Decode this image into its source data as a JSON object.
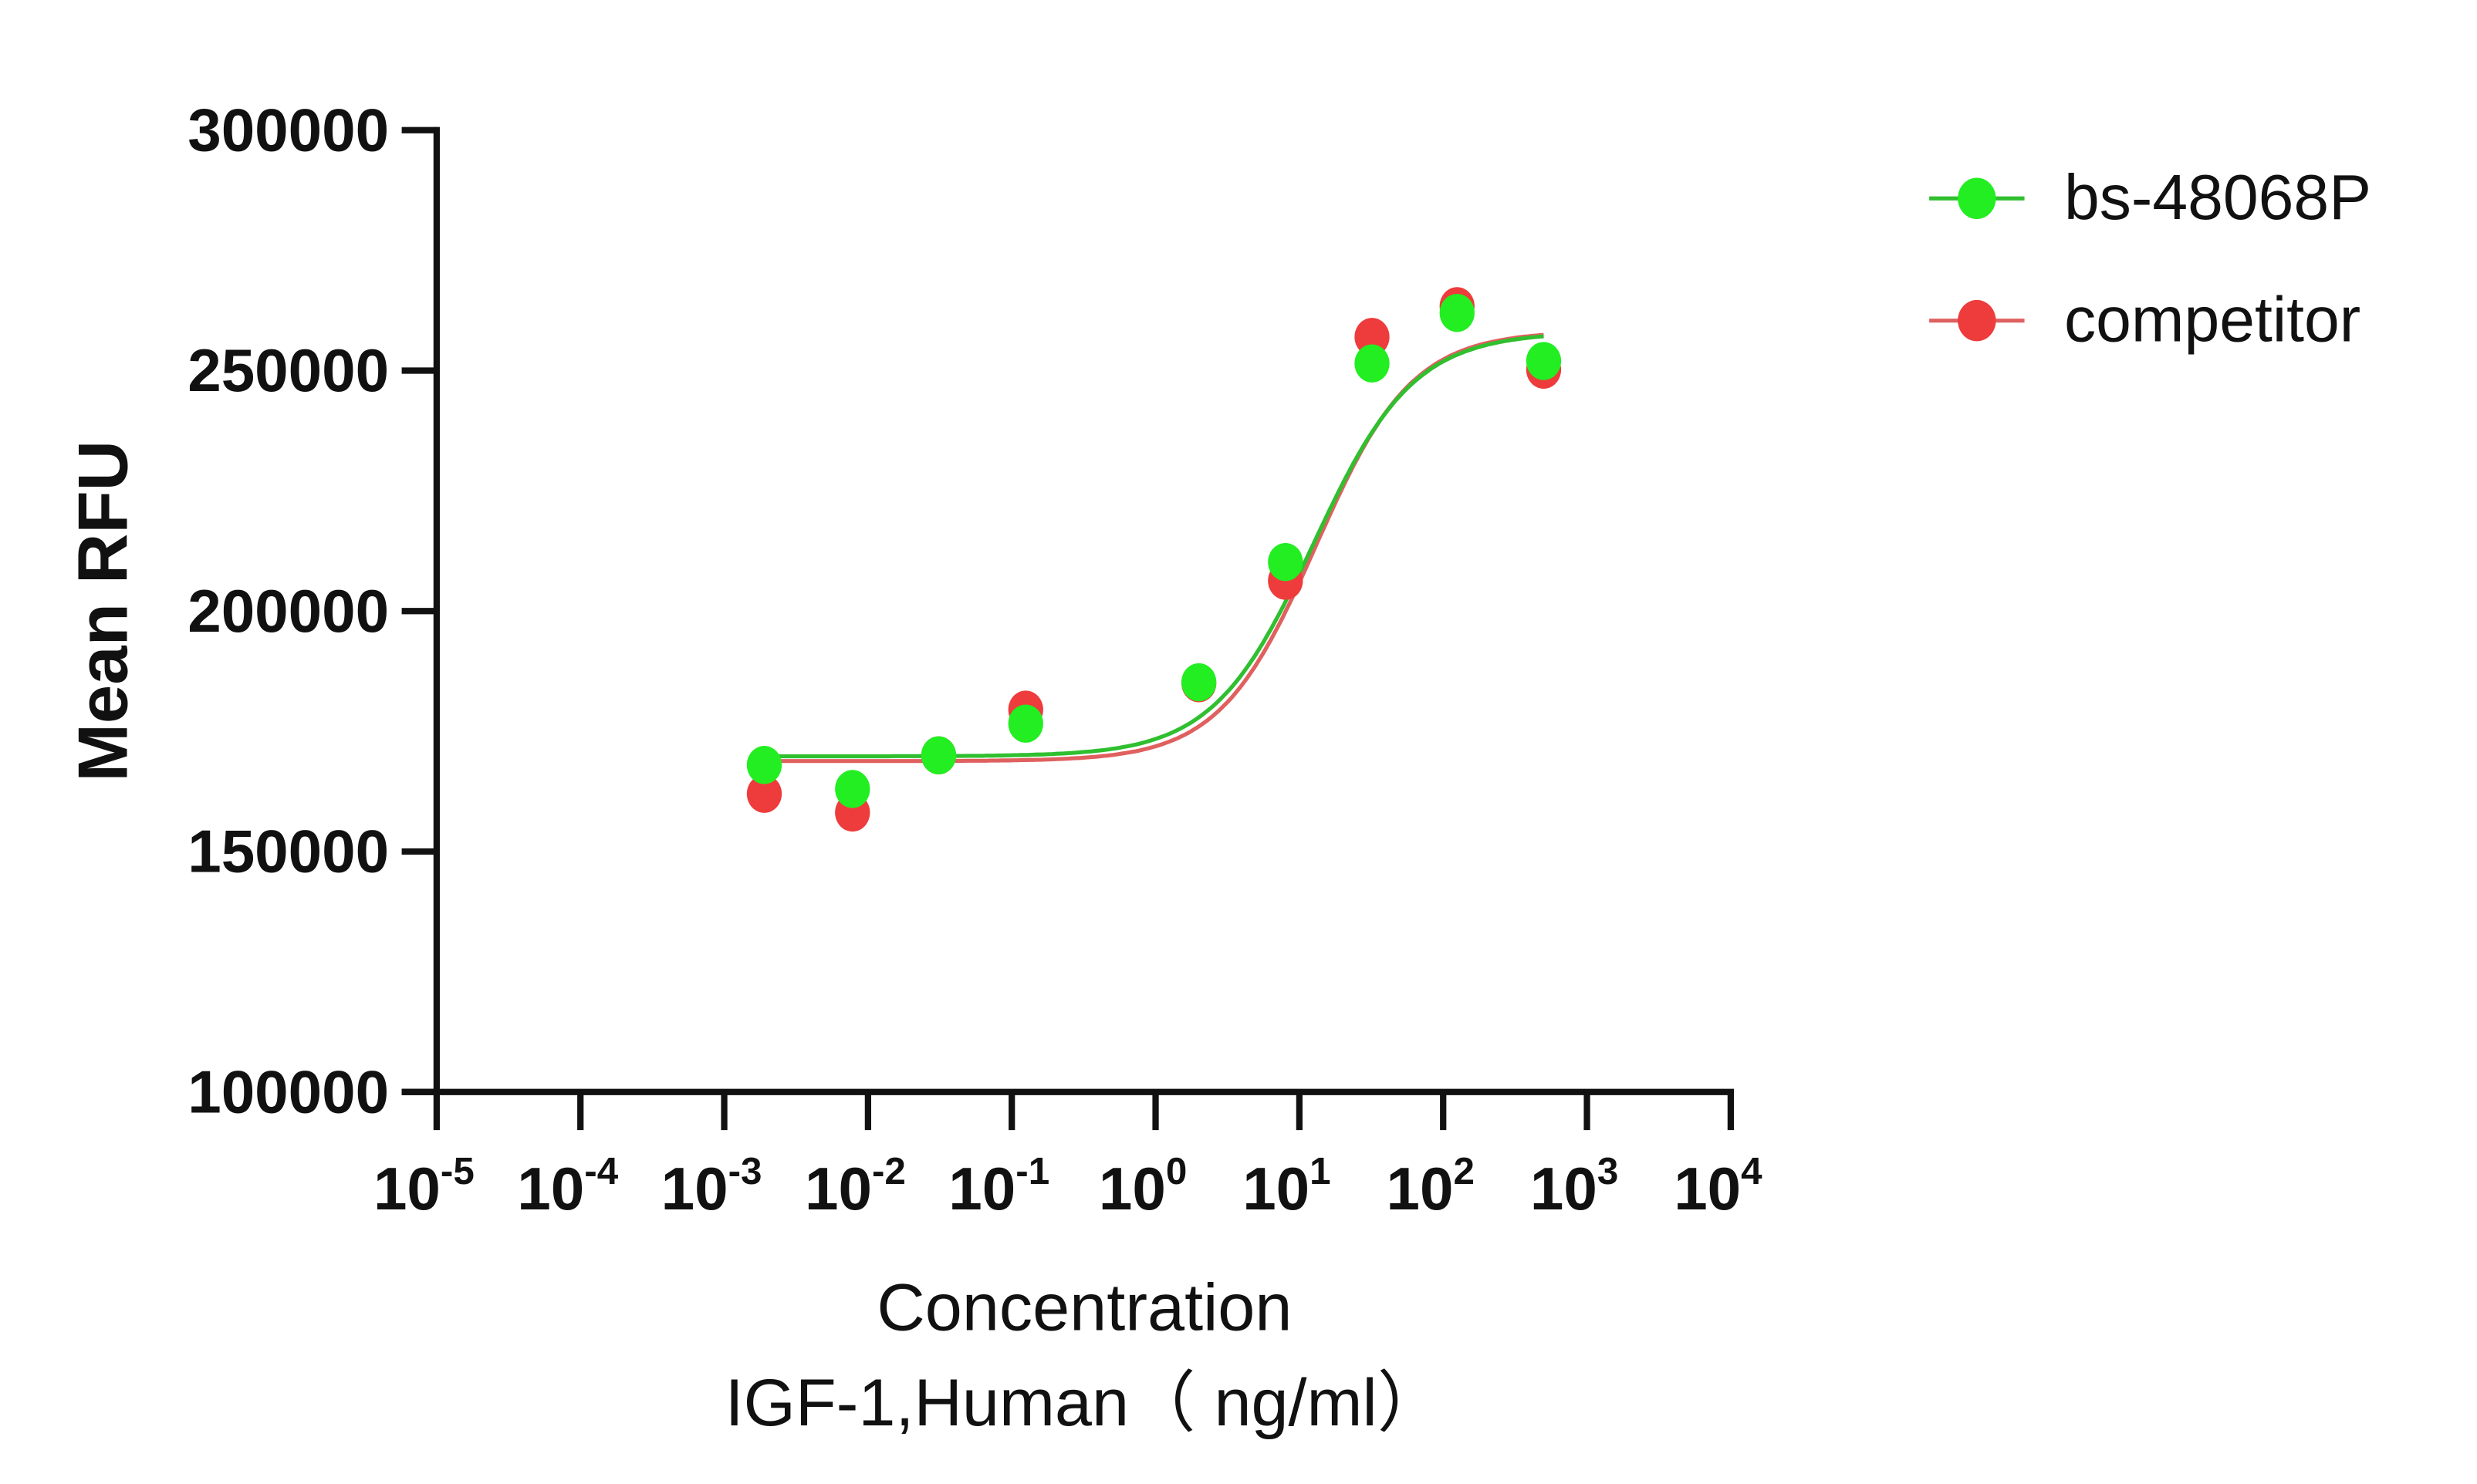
{
  "chart_data": {
    "type": "scatter",
    "title": "",
    "xlabel": "Concentration",
    "xlabel_line2": "IGF-1,Human（ ng/ml）",
    "ylabel": "Mean RFU",
    "xscale": "log",
    "xlim": [
      1e-05,
      10000
    ],
    "ylim": [
      100000,
      300000
    ],
    "yticks": [
      100000,
      150000,
      200000,
      250000,
      300000
    ],
    "ytick_labels": [
      "100000",
      "150000",
      "200000",
      "250000",
      "300000"
    ],
    "xtick_exponents": [
      "-5",
      "-4",
      "-3",
      "-2",
      "-1",
      "0",
      "1",
      "2",
      "3",
      "4"
    ],
    "xtick_base": "10",
    "grid": false,
    "legend_position": "top-right",
    "x": [
      0.00195,
      0.0078,
      0.031,
      0.125,
      0.5,
      2,
      8,
      32,
      125,
      500
    ],
    "series": [
      {
        "name": "bs-48068P",
        "color": "#22ee22",
        "line_color": "#2fbf2f",
        "points": [
          [
            0.0019,
            168000
          ],
          [
            0.0078,
            163000
          ],
          [
            0.031,
            170000
          ],
          [
            0.125,
            176600
          ],
          [
            2,
            185200
          ],
          [
            8,
            210200
          ],
          [
            32,
            251500
          ],
          [
            125,
            262000
          ],
          [
            500,
            252000
          ]
        ],
        "fit": {
          "bottom": 169800,
          "top": 258000,
          "ec50": 12.5,
          "hill": 1.25
        }
      },
      {
        "name": "competitor",
        "color": "#ee3b3b",
        "line_color": "#e06060",
        "points": [
          [
            0.0019,
            162000
          ],
          [
            0.0078,
            158100
          ],
          [
            0.031,
            170000
          ],
          [
            0.125,
            179500
          ],
          [
            2,
            185000
          ],
          [
            8,
            206300
          ],
          [
            32,
            257000
          ],
          [
            125,
            263400
          ],
          [
            500,
            250200
          ]
        ],
        "fit": {
          "bottom": 168800,
          "top": 258200,
          "ec50": 13,
          "hill": 1.3
        }
      }
    ]
  }
}
